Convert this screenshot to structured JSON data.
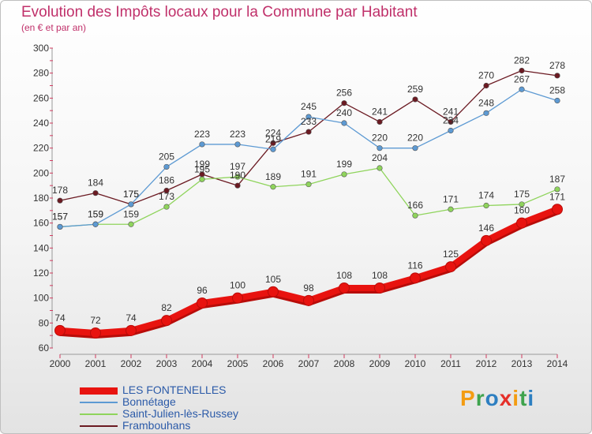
{
  "title": "Evolution des Impôts locaux pour la Commune par Habitant",
  "subtitle": "(en € et par an)",
  "logo": {
    "text": "Proxiti",
    "colors": [
      "#f39c12",
      "#3fa34d",
      "#2d7fc1",
      "#e5302a",
      "#f39c12",
      "#3fa34d",
      "#2d7fc1"
    ]
  },
  "chart_data": {
    "type": "line",
    "title": "Evolution des Impôts locaux pour la Commune par Habitant",
    "ylabel": "(en € et par an)",
    "xlabel": "",
    "x": [
      "2000",
      "2001",
      "2002",
      "2003",
      "2004",
      "2005",
      "2006",
      "2007",
      "2008",
      "2009",
      "2010",
      "2011",
      "2012",
      "2013",
      "2014"
    ],
    "ylim": [
      60,
      300
    ],
    "yticks": [
      60,
      80,
      100,
      120,
      140,
      160,
      180,
      200,
      220,
      240,
      260,
      280,
      300
    ],
    "grid": false,
    "legend_position": "bottom-left",
    "series": [
      {
        "name": "LES FONTENELLES",
        "color": "#e8130f",
        "values": [
          74,
          72,
          74,
          82,
          96,
          100,
          105,
          98,
          108,
          108,
          116,
          125,
          146,
          160,
          171
        ]
      },
      {
        "name": "Bonnétage",
        "color": "#5d9ad3",
        "values": [
          157,
          159,
          175,
          205,
          223,
          223,
          219,
          245,
          240,
          220,
          220,
          234,
          248,
          267,
          258
        ]
      },
      {
        "name": "Saint-Julien-lès-Russey",
        "color": "#8fd45c",
        "values": [
          157,
          159,
          159,
          173,
          195,
          197,
          189,
          191,
          199,
          204,
          166,
          171,
          174,
          175,
          187
        ]
      },
      {
        "name": "Frambouhans",
        "color": "#6b1a22",
        "values": [
          178,
          184,
          175,
          186,
          199,
          190,
          224,
          233,
          256,
          241,
          259,
          241,
          270,
          282,
          278
        ]
      }
    ]
  }
}
